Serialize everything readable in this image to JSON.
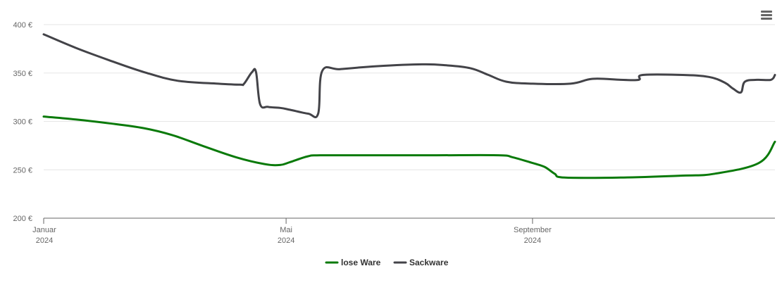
{
  "menu_icon": "hamburger-menu-icon",
  "chart_data": {
    "type": "line",
    "title": "",
    "xlabel": "",
    "ylabel": "",
    "ylim": [
      200,
      400
    ],
    "y_ticks": [
      "200 €",
      "250 €",
      "300 €",
      "350 €",
      "400 €"
    ],
    "y_tick_values": [
      200,
      250,
      300,
      350,
      400
    ],
    "x_range": [
      "2024-01-01",
      "2024-12-31"
    ],
    "x_ticks": [
      {
        "date": "2024-01-01",
        "line1": "Januar",
        "line2": "2024"
      },
      {
        "date": "2024-05-01",
        "line1": "Mai",
        "line2": "2024"
      },
      {
        "date": "2024-09-01",
        "line1": "September",
        "line2": "2024"
      }
    ],
    "grid": true,
    "legend_position": "bottom-center",
    "series": [
      {
        "name": "lose Ware",
        "color": "#0a7a0a",
        "points": [
          [
            "2024-01-01",
            305
          ],
          [
            "2024-01-17",
            302
          ],
          [
            "2024-02-03",
            298
          ],
          [
            "2024-02-20",
            293
          ],
          [
            "2024-03-05",
            286
          ],
          [
            "2024-03-20",
            275
          ],
          [
            "2024-04-06",
            263
          ],
          [
            "2024-04-20",
            256
          ],
          [
            "2024-04-28",
            255
          ],
          [
            "2024-05-03",
            258
          ],
          [
            "2024-05-12",
            264
          ],
          [
            "2024-05-18",
            265
          ],
          [
            "2024-06-15",
            265
          ],
          [
            "2024-07-15",
            265
          ],
          [
            "2024-08-15",
            265
          ],
          [
            "2024-08-22",
            263
          ],
          [
            "2024-09-01",
            257
          ],
          [
            "2024-09-07",
            253
          ],
          [
            "2024-09-12",
            246
          ],
          [
            "2024-09-17",
            242
          ],
          [
            "2024-10-15",
            242
          ],
          [
            "2024-11-15",
            244
          ],
          [
            "2024-12-01",
            246
          ],
          [
            "2024-12-23",
            257
          ],
          [
            "2024-12-31",
            279
          ]
        ]
      },
      {
        "name": "Sackware",
        "color": "#434348",
        "points": [
          [
            "2024-01-01",
            390
          ],
          [
            "2024-01-17",
            376
          ],
          [
            "2024-02-03",
            363
          ],
          [
            "2024-02-20",
            351
          ],
          [
            "2024-03-08",
            342
          ],
          [
            "2024-03-28",
            339
          ],
          [
            "2024-04-08",
            338
          ],
          [
            "2024-04-10",
            339
          ],
          [
            "2024-04-14",
            351
          ],
          [
            "2024-04-16",
            351
          ],
          [
            "2024-04-18",
            318
          ],
          [
            "2024-04-22",
            315
          ],
          [
            "2024-04-28",
            314
          ],
          [
            "2024-05-03",
            312
          ],
          [
            "2024-05-12",
            308
          ],
          [
            "2024-05-17",
            308
          ],
          [
            "2024-05-19",
            352
          ],
          [
            "2024-05-28",
            354
          ],
          [
            "2024-06-15",
            357
          ],
          [
            "2024-07-08",
            359
          ],
          [
            "2024-07-20",
            358
          ],
          [
            "2024-08-01",
            355
          ],
          [
            "2024-08-10",
            348
          ],
          [
            "2024-08-19",
            341
          ],
          [
            "2024-09-01",
            339
          ],
          [
            "2024-09-20",
            339
          ],
          [
            "2024-10-01",
            344
          ],
          [
            "2024-10-15",
            343
          ],
          [
            "2024-10-24",
            343
          ],
          [
            "2024-10-26",
            348
          ],
          [
            "2024-11-15",
            348
          ],
          [
            "2024-11-28",
            346
          ],
          [
            "2024-12-06",
            340
          ],
          [
            "2024-12-10",
            334
          ],
          [
            "2024-12-14",
            330
          ],
          [
            "2024-12-16",
            341
          ],
          [
            "2024-12-22",
            343
          ],
          [
            "2024-12-29",
            343
          ],
          [
            "2024-12-31",
            348
          ]
        ]
      }
    ]
  }
}
